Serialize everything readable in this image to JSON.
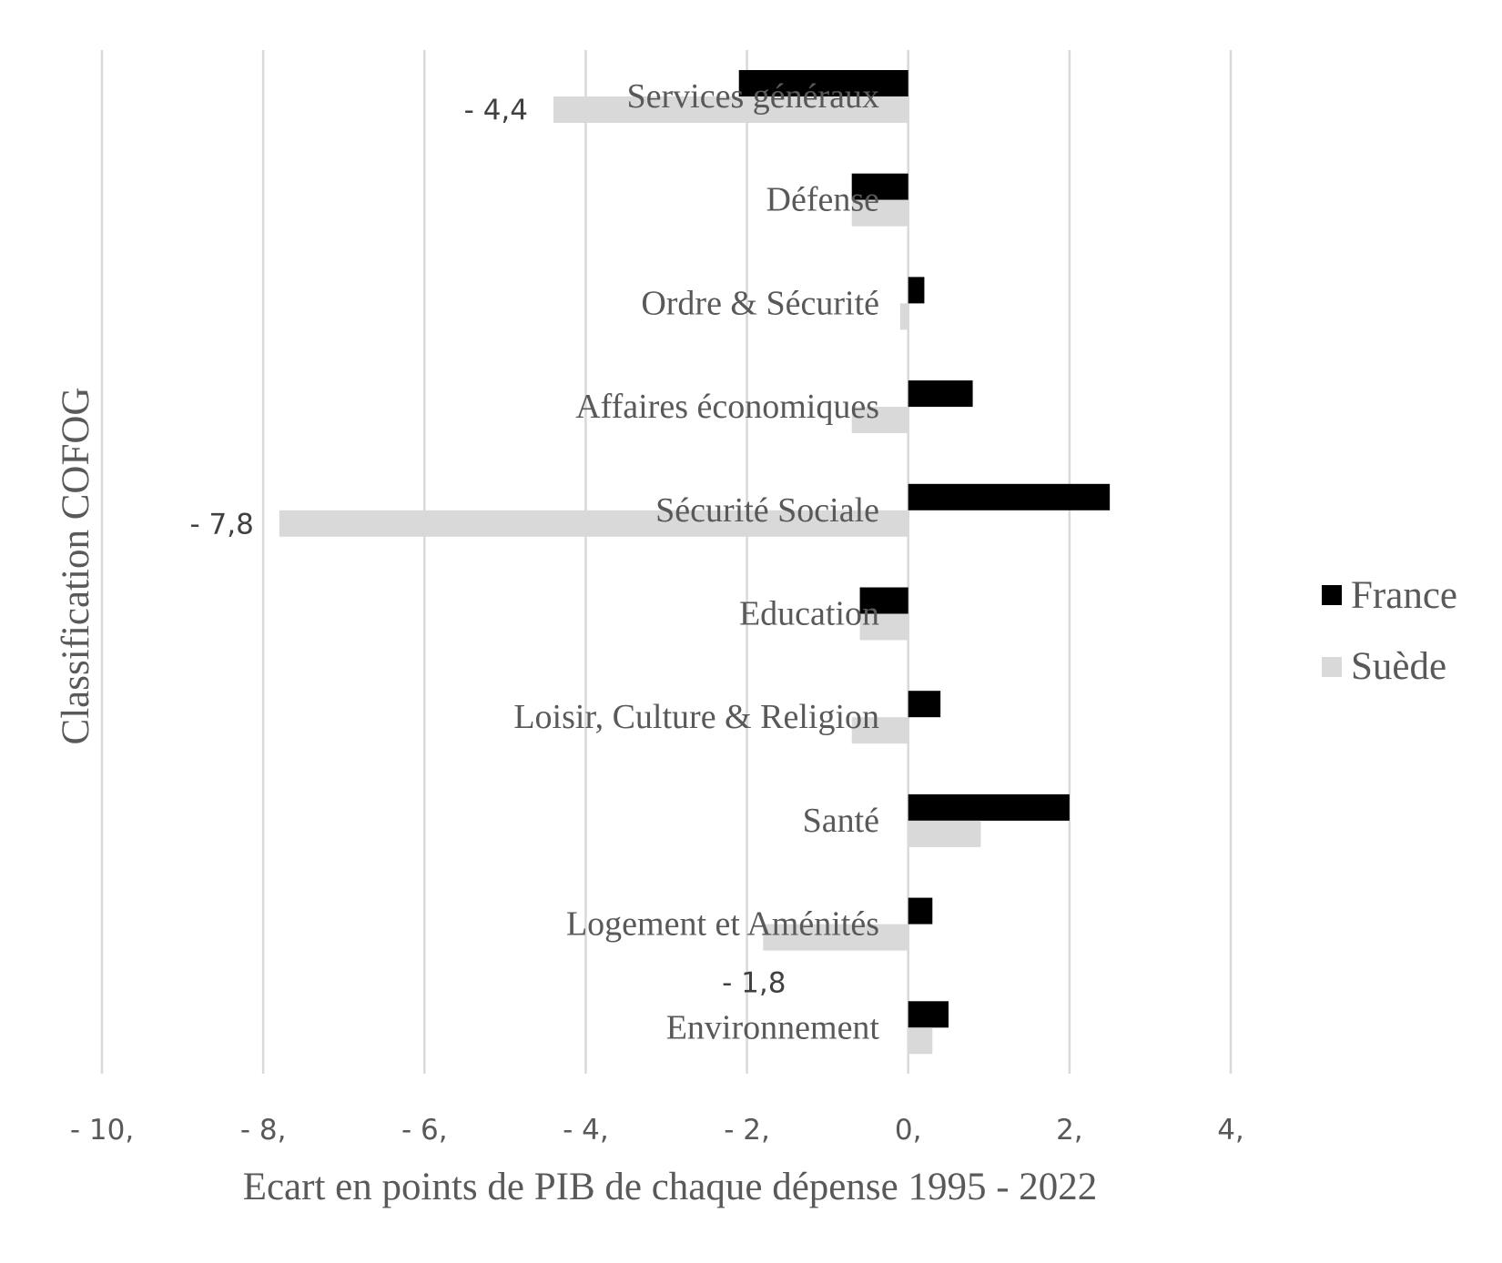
{
  "chart_data": {
    "type": "bar",
    "orientation": "horizontal",
    "categories": [
      "Services généraux",
      "Défense",
      "Ordre & Sécurité",
      "Affaires économiques",
      "Sécurité Sociale",
      "Education",
      "Loisir, Culture & Religion",
      "Santé",
      "Logement et Aménités",
      "Environnement"
    ],
    "series": [
      {
        "name": "France",
        "color": "#000000",
        "values": [
          -2.1,
          -0.7,
          0.2,
          0.8,
          2.5,
          -0.6,
          0.4,
          2.0,
          0.3,
          0.5
        ]
      },
      {
        "name": "Suède",
        "color": "#d9d9d9",
        "values": [
          -4.4,
          -0.7,
          -0.1,
          -0.7,
          -7.8,
          -0.6,
          -0.7,
          0.9,
          -1.8,
          0.3
        ]
      }
    ],
    "data_labels": [
      {
        "series": 1,
        "index": 0,
        "text": "- 4,4"
      },
      {
        "series": 1,
        "index": 4,
        "text": "- 7,8"
      },
      {
        "series": 1,
        "index": 8,
        "text": "- 1,8"
      }
    ],
    "xticks": [
      -10,
      -8,
      -6,
      -4,
      -2,
      0,
      2,
      4
    ],
    "xtick_labels": [
      "- 10,",
      "- 8,",
      "- 6,",
      "- 4,",
      "- 2,",
      "0,",
      "2,",
      "4,"
    ],
    "xlim": [
      -10,
      4
    ],
    "xlabel": "Ecart en points de PIB de chaque dépense 1995 - 2022",
    "ylabel": "Classification COFOG",
    "grid": "vertical",
    "legend": "right"
  }
}
